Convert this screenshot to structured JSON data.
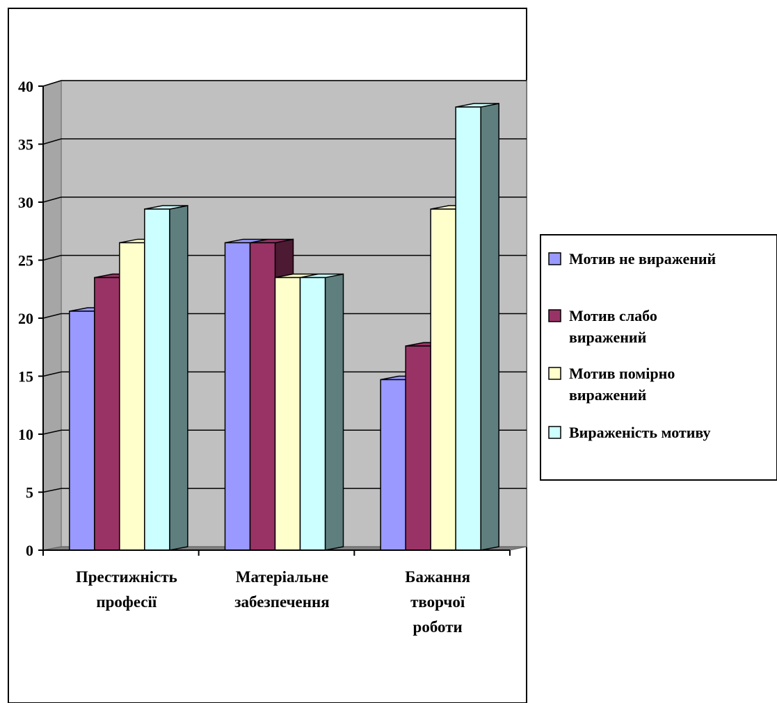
{
  "chart_data": {
    "type": "bar",
    "categories": [
      [
        "Престижність",
        "професії"
      ],
      [
        "Матеріальне",
        "забезпечення"
      ],
      [
        "Бажання",
        "творчої",
        "роботи"
      ]
    ],
    "series": [
      {
        "name": "Мотив не виражений",
        "color": "#9999ff",
        "values": [
          20.6,
          26.5,
          14.7
        ]
      },
      {
        "name": "Мотив слабо виражений",
        "color": "#993366",
        "values": [
          23.5,
          26.5,
          17.6
        ]
      },
      {
        "name": "Мотив помірно виражений",
        "color": "#ffffcc",
        "values": [
          26.5,
          23.5,
          29.4
        ]
      },
      {
        "name": "Вираженість мотиву",
        "color": "#ccffff",
        "values": [
          29.4,
          23.5,
          38.2
        ]
      }
    ],
    "legend_labels": [
      [
        "Мотив не виражений"
      ],
      [
        "Мотив слабо",
        "виражений"
      ],
      [
        "Мотив помірно",
        "виражений"
      ],
      [
        "Вираженість мотиву"
      ]
    ],
    "ylim": [
      0,
      40
    ],
    "yticks": [
      "0",
      "5",
      "10",
      "15",
      "20",
      "25",
      "30",
      "35",
      "40"
    ],
    "grid": true,
    "legend_position": "right",
    "style": "3d-clustered-column",
    "wall_color": "#c0c0c0",
    "side_shade_color": "#5f7f7f"
  }
}
